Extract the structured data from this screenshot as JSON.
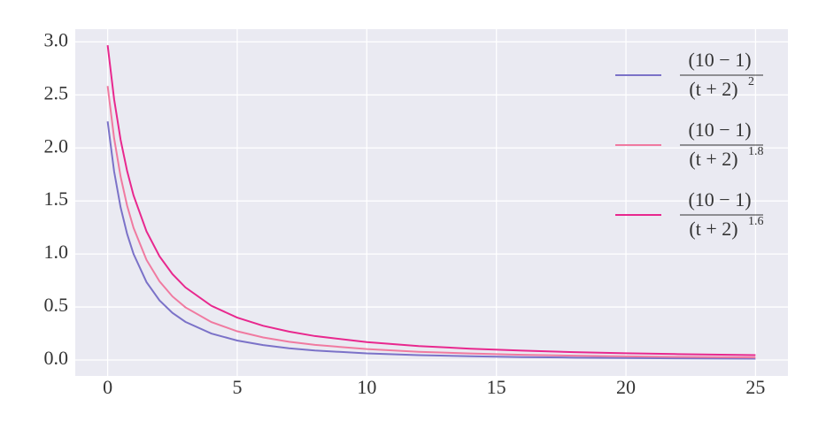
{
  "chart_data": {
    "type": "line",
    "x": [
      0,
      0.25,
      0.5,
      0.75,
      1,
      1.5,
      2,
      2.5,
      3,
      4,
      5,
      6,
      7,
      8,
      10,
      12,
      14,
      16,
      18,
      20,
      22,
      25
    ],
    "series": [
      {
        "name": {
          "numerator": "(10 − 1)",
          "denominator": "(t + 2)",
          "exponent": "2"
        },
        "color": "#7b72c8",
        "values": [
          2.25,
          1.7778,
          1.44,
          1.1901,
          1.0,
          0.7347,
          0.5625,
          0.4444,
          0.36,
          0.25,
          0.1837,
          0.1406,
          0.1111,
          0.09,
          0.0625,
          0.0459,
          0.0352,
          0.0278,
          0.0225,
          0.0186,
          0.0156,
          0.0123
        ]
      },
      {
        "name": {
          "numerator": "(10 − 1)",
          "denominator": "(t + 2)",
          "exponent": "1.8"
        },
        "color": "#f07aa0",
        "values": [
          2.584,
          2.091,
          1.73,
          1.457,
          1.246,
          0.944,
          0.742,
          0.6,
          0.497,
          0.358,
          0.271,
          0.213,
          0.172,
          0.143,
          0.103,
          0.0778,
          0.0612,
          0.0495,
          0.041,
          0.0345,
          0.0295,
          0.0239
        ]
      },
      {
        "name": {
          "numerator": "(10 − 1)",
          "denominator": "(t + 2)",
          "exponent": "1.6"
        },
        "color": "#e8288e",
        "values": [
          2.969,
          2.459,
          2.077,
          1.784,
          1.552,
          1.213,
          0.979,
          0.811,
          0.685,
          0.512,
          0.4,
          0.323,
          0.268,
          0.226,
          0.169,
          0.132,
          0.107,
          0.0883,
          0.0746,
          0.064,
          0.0557,
          0.0461
        ]
      }
    ],
    "xlim": [
      -1.25,
      26.25
    ],
    "ylim": [
      -0.15,
      3.12
    ],
    "xticks": [
      0,
      5,
      10,
      15,
      20,
      25
    ],
    "yticks": [
      {
        "value": 0,
        "label": "0.0"
      },
      0.5,
      {
        "value": 1,
        "label": "1.0"
      },
      1.5,
      {
        "value": 2,
        "label": "2.0"
      },
      2.5,
      {
        "value": 3,
        "label": "3.0"
      }
    ],
    "grid": true,
    "legend": "upper right"
  }
}
